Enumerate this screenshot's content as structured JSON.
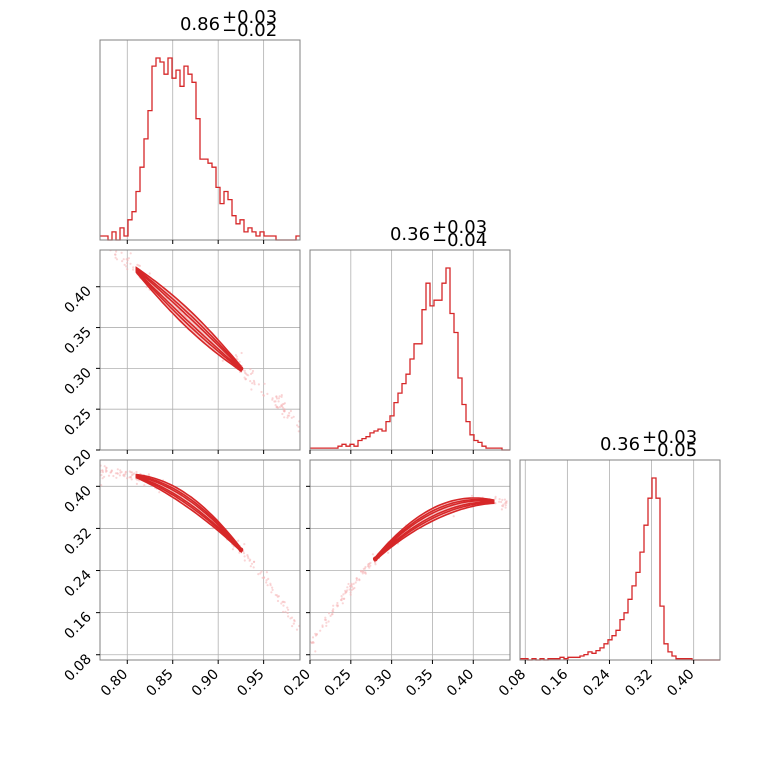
{
  "colors": {
    "accent": "#d62728",
    "contour_fill": "#f4b6b7",
    "scatter": "#f5b5b6"
  },
  "chart_data": {
    "type": "corner",
    "grid": true,
    "parameters": [
      {
        "title": {
          "median": "0.86",
          "plus": "+0.03",
          "minus": "−0.02"
        },
        "range": [
          0.77,
          0.99
        ]
      },
      {
        "title": {
          "median": "0.36",
          "plus": "+0.03",
          "minus": "−0.04"
        },
        "range": [
          0.2,
          0.445
        ]
      },
      {
        "title": {
          "median": "0.36",
          "plus": "+0.03",
          "minus": "−0.05"
        },
        "range": [
          0.07,
          0.45
        ]
      }
    ],
    "ticks": {
      "p1": {
        "values": [
          0.8,
          0.85,
          0.9,
          0.95
        ],
        "labels": [
          "0.80",
          "0.85",
          "0.90",
          "0.95"
        ]
      },
      "p2": {
        "values": [
          0.2,
          0.25,
          0.3,
          0.35,
          0.4
        ],
        "labels": [
          "0.20",
          "0.25",
          "0.30",
          "0.35",
          "0.40"
        ]
      },
      "p3": {
        "values": [
          0.08,
          0.16,
          0.24,
          0.32,
          0.4
        ],
        "labels": [
          "0.08",
          "0.16",
          "0.24",
          "0.32",
          "0.40"
        ]
      }
    },
    "histograms": [
      {
        "bin_start": 0.77,
        "bin_width": 0.0044,
        "counts": [
          1,
          1,
          0,
          2,
          0,
          3,
          1,
          5,
          7,
          12,
          18,
          25,
          32,
          43,
          45,
          44,
          41,
          45,
          40,
          42,
          38,
          43,
          41,
          39,
          30,
          20,
          20,
          19,
          18,
          13,
          9,
          12,
          10,
          6,
          4,
          5,
          2,
          3,
          2,
          1,
          2,
          1,
          1,
          1,
          0,
          0,
          0,
          0,
          0,
          1
        ]
      },
      {
        "bin_start": 0.2,
        "bin_width": 0.0049,
        "counts": [
          1,
          1,
          1,
          1,
          1,
          1,
          1,
          2,
          3,
          2,
          3,
          2,
          5,
          6,
          7,
          9,
          10,
          11,
          10,
          15,
          18,
          25,
          30,
          35,
          40,
          48,
          56,
          56,
          74,
          88,
          76,
          79,
          79,
          88,
          96,
          72,
          62,
          38,
          24,
          15,
          8,
          5,
          4,
          2,
          1,
          1,
          1,
          1,
          0,
          0
        ]
      },
      {
        "bin_start": 0.07,
        "bin_width": 0.0076,
        "counts": [
          1,
          1,
          0,
          1,
          0,
          1,
          0,
          1,
          1,
          1,
          2,
          1,
          2,
          2,
          2,
          3,
          4,
          6,
          5,
          7,
          9,
          12,
          15,
          18,
          22,
          30,
          35,
          45,
          55,
          65,
          80,
          100,
          120,
          135,
          120,
          40,
          12,
          6,
          3,
          1,
          1,
          1,
          1,
          0,
          0,
          0,
          0,
          0,
          0,
          0
        ]
      }
    ],
    "pairs": [
      {
        "x_param": 0,
        "y_param": 1,
        "relation": "linear",
        "a": 0.41,
        "b": -1.05,
        "x0": 0.82
      },
      {
        "x_param": 0,
        "y_param": 2,
        "relation": "curved",
        "a": 0.414,
        "b": -0.6,
        "c": -6.5,
        "x0": 0.82
      },
      {
        "x_param": 1,
        "y_param": 2,
        "relation": "curved",
        "a": 0.262,
        "b": 1.62,
        "c": -6.0,
        "x0": 0.28
      }
    ]
  }
}
